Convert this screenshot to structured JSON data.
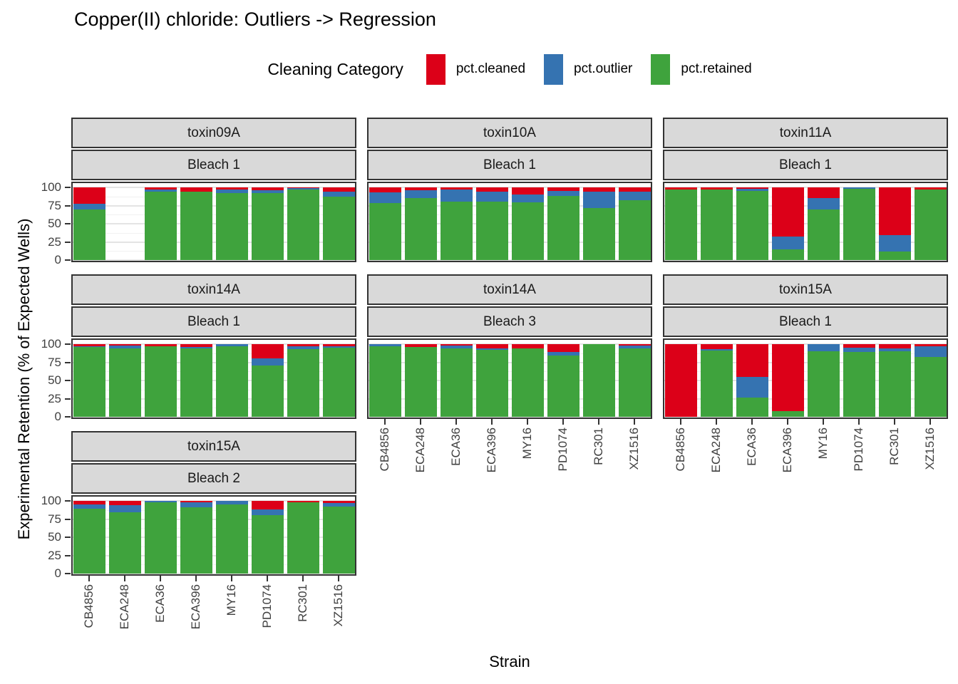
{
  "title": "Copper(II) chloride: Outliers -> Regression",
  "legend": {
    "title": "Cleaning Category",
    "items": [
      {
        "label": "pct.cleaned",
        "color": "#dc0018"
      },
      {
        "label": "pct.outlier",
        "color": "#3573b1"
      },
      {
        "label": "pct.retained",
        "color": "#3fa33d"
      }
    ]
  },
  "axes": {
    "x_title": "Strain",
    "y_title": "Experimental Retention (% of Expected Wells)",
    "y_ticks": [
      100,
      75,
      50,
      25,
      0
    ]
  },
  "chart_data": {
    "type": "bar",
    "stacked": true,
    "ylim": [
      0,
      100
    ],
    "grid": "major+minor",
    "legend_position": "top",
    "categories": [
      "CB4856",
      "ECA248",
      "ECA36",
      "ECA396",
      "MY16",
      "PD1074",
      "RC301",
      "XZ1516"
    ],
    "series_names": [
      "pct.retained",
      "pct.outlier",
      "pct.cleaned"
    ],
    "facets": [
      {
        "toxin": "toxin09A",
        "bleach": "Bleach 1",
        "row": 0,
        "col": 0,
        "x_axis": false,
        "retained": [
          70,
          null,
          94,
          94,
          92,
          92,
          97,
          87
        ],
        "outlier": [
          7,
          null,
          3,
          0,
          5,
          4,
          2,
          7
        ],
        "cleaned": [
          23,
          null,
          3,
          6,
          3,
          4,
          1,
          6
        ]
      },
      {
        "toxin": "toxin10A",
        "bleach": "Bleach 1",
        "row": 0,
        "col": 1,
        "x_axis": false,
        "retained": [
          78,
          85,
          80,
          80,
          79,
          88,
          72,
          82
        ],
        "outlier": [
          15,
          11,
          17,
          14,
          11,
          7,
          22,
          12
        ],
        "cleaned": [
          7,
          4,
          3,
          6,
          10,
          5,
          6,
          6
        ]
      },
      {
        "toxin": "toxin11A",
        "bleach": "Bleach 1",
        "row": 0,
        "col": 2,
        "x_axis": false,
        "retained": [
          97,
          97,
          95,
          15,
          70,
          98,
          12,
          97
        ],
        "outlier": [
          0,
          0,
          3,
          17,
          15,
          2,
          22,
          0
        ],
        "cleaned": [
          3,
          3,
          2,
          68,
          15,
          0,
          66,
          3
        ]
      },
      {
        "toxin": "toxin14A",
        "bleach": "Bleach 1",
        "row": 1,
        "col": 0,
        "x_axis": false,
        "retained": [
          96,
          94,
          97,
          94,
          97,
          71,
          93,
          95
        ],
        "outlier": [
          1,
          4,
          0,
          2,
          3,
          9,
          4,
          2
        ],
        "cleaned": [
          3,
          2,
          3,
          4,
          0,
          20,
          3,
          3
        ]
      },
      {
        "toxin": "toxin14A",
        "bleach": "Bleach 3",
        "row": 1,
        "col": 1,
        "x_axis": true,
        "retained": [
          97,
          96,
          94,
          92,
          94,
          84,
          100,
          94
        ],
        "outlier": [
          3,
          0,
          4,
          2,
          0,
          5,
          0,
          4
        ],
        "cleaned": [
          0,
          4,
          2,
          6,
          6,
          11,
          0,
          2
        ]
      },
      {
        "toxin": "toxin15A",
        "bleach": "Bleach 1",
        "row": 1,
        "col": 2,
        "x_axis": true,
        "retained": [
          0,
          91,
          26,
          8,
          90,
          89,
          90,
          82
        ],
        "outlier": [
          0,
          2,
          29,
          0,
          10,
          6,
          4,
          15
        ],
        "cleaned": [
          100,
          7,
          45,
          92,
          0,
          5,
          6,
          3
        ]
      },
      {
        "toxin": "toxin15A",
        "bleach": "Bleach 2",
        "row": 2,
        "col": 0,
        "x_axis": true,
        "retained": [
          89,
          84,
          98,
          91,
          95,
          80,
          98,
          92
        ],
        "outlier": [
          6,
          10,
          2,
          7,
          5,
          8,
          0,
          5
        ],
        "cleaned": [
          5,
          6,
          0,
          2,
          0,
          12,
          2,
          3
        ]
      }
    ]
  }
}
